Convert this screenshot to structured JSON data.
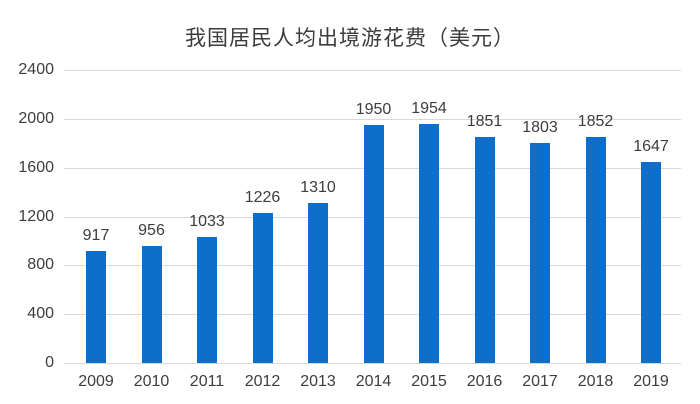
{
  "title": "我国居民人均出境游花费（美元）",
  "colors": {
    "bar": "#0d6fc9",
    "gridline": "#d9d9d9",
    "text": "#3d3d3d",
    "title_text": "#3c3c3c",
    "background": "#ffffff"
  },
  "chart_data": {
    "type": "bar",
    "title": "我国居民人均出境游花费（美元）",
    "categories": [
      "2009",
      "2010",
      "2011",
      "2012",
      "2013",
      "2014",
      "2015",
      "2016",
      "2017",
      "2018",
      "2019"
    ],
    "values": [
      917,
      956,
      1033,
      1226,
      1310,
      1950,
      1954,
      1851,
      1803,
      1852,
      1647
    ],
    "xlabel": "",
    "ylabel": "",
    "ylim": [
      0,
      2400
    ],
    "yticks": [
      0,
      400,
      800,
      1200,
      1600,
      2000,
      2400
    ],
    "grid": "horizontal",
    "legend_position": "none",
    "data_labels": true
  }
}
